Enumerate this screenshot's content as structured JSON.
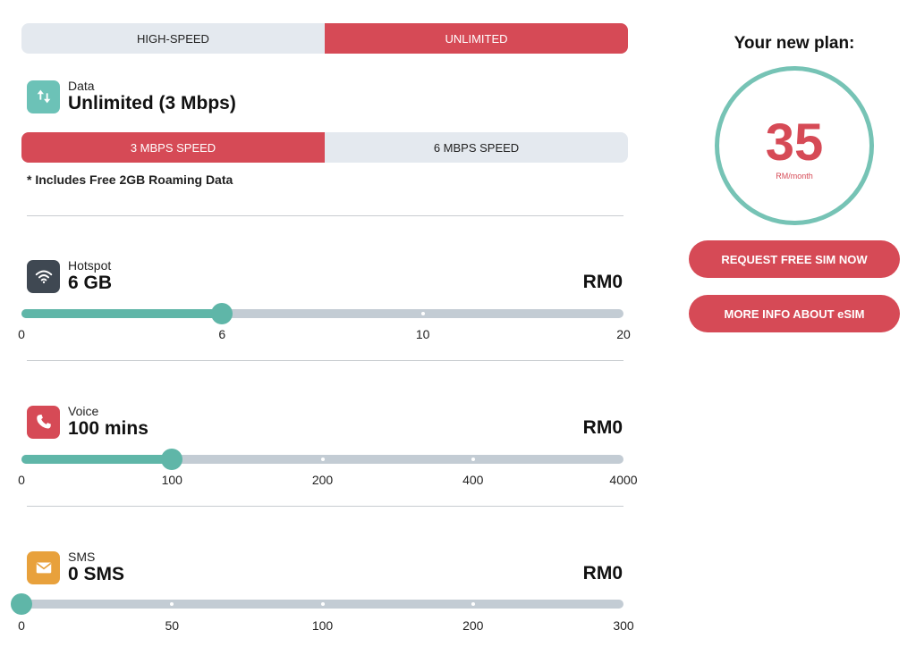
{
  "plan_type_toggle": {
    "options": [
      "HIGH-SPEED",
      "UNLIMITED"
    ],
    "selected": "UNLIMITED"
  },
  "data": {
    "label": "Data",
    "value": "Unlimited (3 Mbps)",
    "speed_toggle": {
      "options": [
        "3 MBPS SPEED",
        "6 MBPS SPEED"
      ],
      "selected": "3 MBPS SPEED"
    },
    "note": "* Includes Free 2GB Roaming Data"
  },
  "hotspot": {
    "label": "Hotspot",
    "value": "6 GB",
    "price": "RM0",
    "slider": {
      "ticks": [
        "0",
        "6",
        "10",
        "20"
      ],
      "selected_index": 1
    }
  },
  "voice": {
    "label": "Voice",
    "value": "100 mins",
    "price": "RM0",
    "slider": {
      "ticks": [
        "0",
        "100",
        "200",
        "400",
        "4000"
      ],
      "selected_index": 1
    }
  },
  "sms": {
    "label": "SMS",
    "value": "0 SMS",
    "price": "RM0",
    "slider": {
      "ticks": [
        "0",
        "50",
        "100",
        "200",
        "300"
      ],
      "selected_index": 0
    }
  },
  "plan_summary": {
    "title": "Your new plan:",
    "price": "35",
    "unit": "RM/month"
  },
  "actions": {
    "request_sim": "REQUEST FREE SIM NOW",
    "esim_info": "MORE INFO ABOUT eSIM"
  },
  "colors": {
    "accent_red": "#d64a56",
    "accent_teal": "#5fb6a8",
    "track_gray": "#c3ccd4",
    "toggle_bg": "#e4e9ef"
  },
  "icons": {
    "data": "arrows-up-down-icon",
    "hotspot": "wifi-icon",
    "voice": "phone-icon",
    "sms": "envelope-icon"
  }
}
